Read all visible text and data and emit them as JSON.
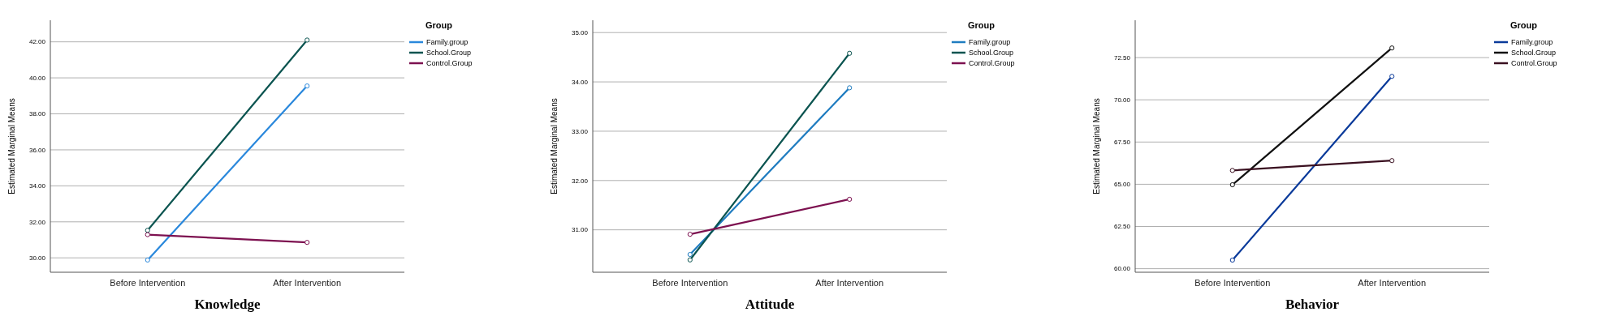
{
  "chart_data": [
    {
      "type": "line",
      "title": "Knowledge",
      "ylabel": "Estimated Marginal Means",
      "legend_title": "Group",
      "categories": [
        "Before Intervention",
        "After Intervention"
      ],
      "ylim": [
        29.2,
        43.2
      ],
      "yticks": [
        {
          "value": 30,
          "label": "30.00"
        },
        {
          "value": 32,
          "label": "32.00"
        },
        {
          "value": 34,
          "label": "34.00"
        },
        {
          "value": 36,
          "label": "36.00"
        },
        {
          "value": 38,
          "label": "38.00"
        },
        {
          "value": 40,
          "label": "40.00"
        },
        {
          "value": 42,
          "label": "42.00"
        }
      ],
      "grid": "y",
      "legend": "top right",
      "marker": "circle",
      "line_style": "solid",
      "series": [
        {
          "name": "Family.group",
          "color": "#2a88dc",
          "values": [
            29.88,
            39.55
          ]
        },
        {
          "name": "School.Group",
          "color": "#0b5450",
          "values": [
            31.53,
            42.1
          ]
        },
        {
          "name": "Control.Group",
          "color": "#7d1150",
          "values": [
            31.29,
            30.86
          ]
        }
      ]
    },
    {
      "type": "line",
      "title": "Attitude",
      "ylabel": "Estimated Marginal Means",
      "legend_title": "Group",
      "categories": [
        "Before Intervention",
        "After Intervention"
      ],
      "ylim": [
        30.14,
        35.25
      ],
      "yticks": [
        {
          "value": 31,
          "label": "31.00"
        },
        {
          "value": 32,
          "label": "32.00"
        },
        {
          "value": 33,
          "label": "33.00"
        },
        {
          "value": 34,
          "label": "34.00"
        },
        {
          "value": 35,
          "label": "35.00"
        }
      ],
      "grid": "y",
      "legend": "top right",
      "marker": "circle",
      "line_style": "solid",
      "series": [
        {
          "name": "Family.group",
          "color": "#1f7cc0",
          "values": [
            30.5,
            33.88
          ]
        },
        {
          "name": "School.Group",
          "color": "#0b5450",
          "values": [
            30.39,
            34.58
          ]
        },
        {
          "name": "Control.Group",
          "color": "#7d1150",
          "values": [
            30.91,
            31.62
          ]
        }
      ]
    },
    {
      "type": "line",
      "title": "Behavior",
      "ylabel": "Estimated Marginal Means",
      "legend_title": "Group",
      "categories": [
        "Before Intervention",
        "After Intervention"
      ],
      "ylim": [
        59.79,
        74.71
      ],
      "yticks": [
        {
          "value": 60,
          "label": "60.00"
        },
        {
          "value": 62.5,
          "label": "62.50"
        },
        {
          "value": 65,
          "label": "65.00"
        },
        {
          "value": 67.5,
          "label": "67.50"
        },
        {
          "value": 70,
          "label": "70.00"
        },
        {
          "value": 72.5,
          "label": "72.50"
        }
      ],
      "grid": "y",
      "legend": "top right",
      "marker": "circle",
      "line_style": "solid",
      "series": [
        {
          "name": "Family.group",
          "color": "#0a3a9a",
          "values": [
            60.51,
            71.39
          ]
        },
        {
          "name": "School.Group",
          "color": "#111111",
          "values": [
            64.97,
            73.07
          ]
        },
        {
          "name": "Control.Group",
          "color": "#3a1020",
          "values": [
            65.82,
            66.4
          ]
        }
      ]
    }
  ]
}
